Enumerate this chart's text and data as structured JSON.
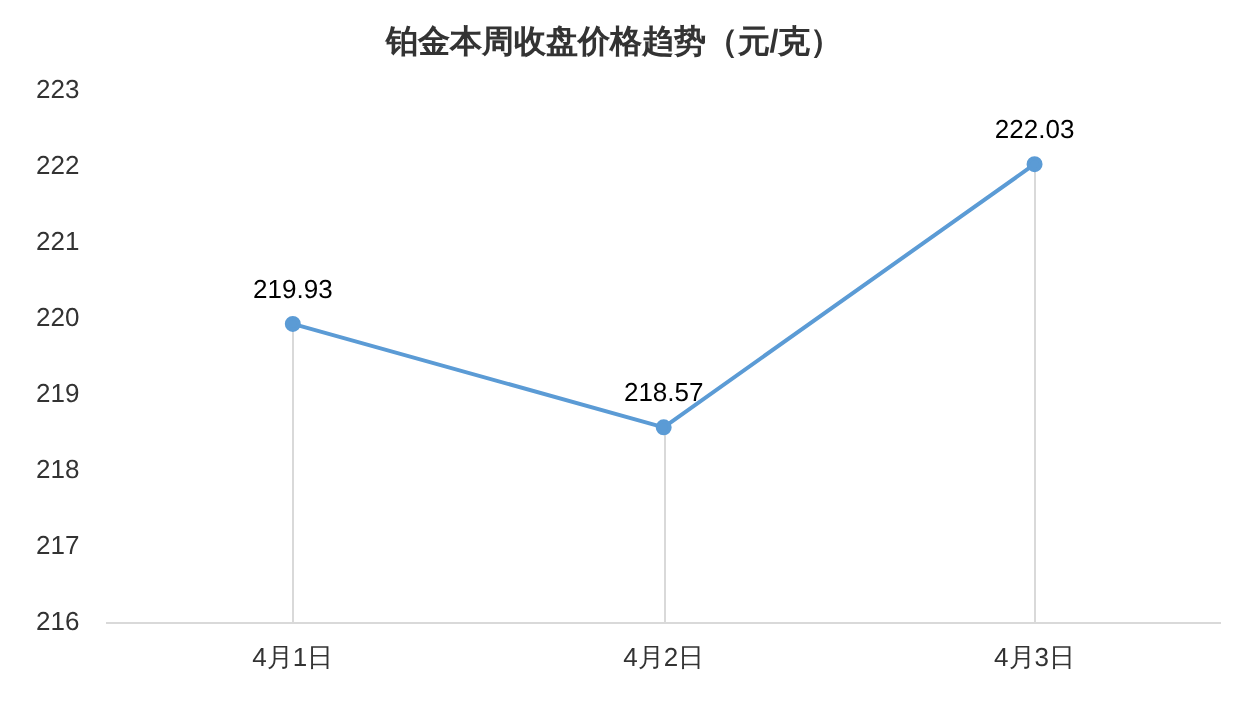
{
  "chart_data": {
    "type": "line",
    "title": "铂金本周收盘价格趋势（元/克）",
    "categories": [
      "4月1日",
      "4月2日",
      "4月3日"
    ],
    "series": [
      {
        "color": "#5b9bd5",
        "values": [
          219.93,
          218.57,
          222.03
        ]
      }
    ],
    "ylim": [
      216,
      223
    ],
    "yticks": [
      216,
      217,
      218,
      219,
      220,
      221,
      222,
      223
    ],
    "grid": "x",
    "legend": false,
    "marker": "circle",
    "data_labels": true
  }
}
